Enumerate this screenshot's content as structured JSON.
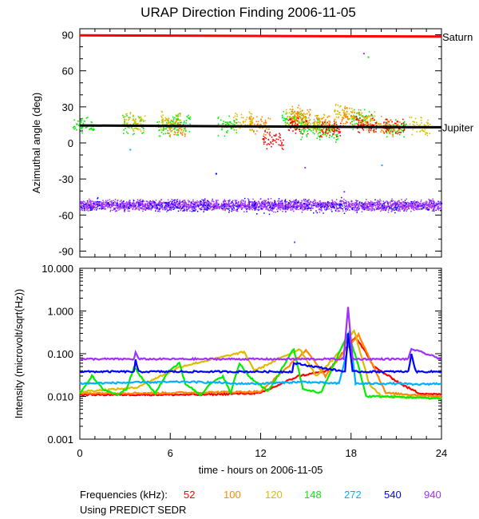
{
  "title": "URAP Direction Finding  2006-11-05",
  "footer": {
    "frequencies_label": "Frequencies (kHz):",
    "source_note": "Using PREDICT SEDR"
  },
  "chart_data": [
    {
      "type": "scatter",
      "panel": "top",
      "ylabel": "Azimuthal angle (deg)",
      "xlim": [
        0,
        24
      ],
      "ylim": [
        -95,
        95
      ],
      "y_ticks": [
        "90",
        "60",
        "30",
        "0",
        "-30",
        "-60",
        "-90"
      ],
      "reference_lines": [
        {
          "name": "Saturn",
          "y_start": 89.5,
          "y_end": 88.5,
          "color": "#ff0000"
        },
        {
          "name": "Jupiter",
          "y_start": 14.5,
          "y_end": 13.0,
          "color": "#000000"
        }
      ],
      "series": [
        {
          "frequency": "940",
          "color": "#a030ff",
          "band": [
            -58,
            -45
          ],
          "x_range": [
            0,
            24
          ],
          "density": "dense"
        },
        {
          "frequency": "540",
          "color": "#0000ff",
          "band": [
            -60,
            -44
          ],
          "x_range": [
            0,
            24
          ],
          "density": "sparse"
        },
        {
          "frequency": "148",
          "color": "#00ee00",
          "clusters": [
            [
              0.2,
              15
            ],
            [
              3.5,
              16
            ],
            [
              5.8,
              14
            ],
            [
              6.6,
              17
            ],
            [
              9.8,
              15
            ],
            [
              14.1,
              20
            ],
            [
              15.3,
              12
            ],
            [
              16.4,
              10
            ],
            [
              18.7,
              20
            ],
            [
              21.0,
              12
            ]
          ]
        },
        {
          "frequency": "120",
          "color": "#ddbb00",
          "clusters": [
            [
              3.6,
              18
            ],
            [
              6.0,
              19
            ],
            [
              10.8,
              18
            ],
            [
              14.3,
              22
            ],
            [
              15.6,
              18
            ],
            [
              17.5,
              25
            ],
            [
              19.2,
              18
            ],
            [
              22.5,
              15
            ]
          ]
        },
        {
          "frequency": "100",
          "color": "#ff8800",
          "clusters": [
            [
              6.4,
              12
            ],
            [
              11.9,
              16
            ],
            [
              14.6,
              24
            ],
            [
              16.2,
              15
            ],
            [
              18.0,
              22
            ],
            [
              20.5,
              14
            ]
          ]
        },
        {
          "frequency": "52",
          "color": "#ff0000",
          "clusters": [
            [
              12.8,
              3
            ],
            [
              14.5,
              15
            ],
            [
              16.6,
              12
            ],
            [
              19.0,
              16
            ],
            [
              20.8,
              13
            ]
          ]
        }
      ],
      "outliers": [
        {
          "x": 18.8,
          "y": 75,
          "color": "#a030ff"
        },
        {
          "x": 19.1,
          "y": 72,
          "color": "#00ee00"
        },
        {
          "x": 14.2,
          "y": -82,
          "color": "#a030ff"
        },
        {
          "x": 9.0,
          "y": -25,
          "color": "#0000ff"
        },
        {
          "x": 3.3,
          "y": -5,
          "color": "#00b0ff"
        },
        {
          "x": 17.5,
          "y": -40,
          "color": "#a030ff"
        },
        {
          "x": 14.9,
          "y": -20,
          "color": "#a030ff"
        },
        {
          "x": 20.0,
          "y": -18,
          "color": "#00b0ff"
        }
      ]
    },
    {
      "type": "line",
      "panel": "bottom",
      "ylabel": "Intensity (microvolt/sqrt(Hz))",
      "xlabel": "time - hours on 2006-11-05",
      "xlim": [
        0,
        24
      ],
      "ylim": [
        0.001,
        10
      ],
      "yscale": "log",
      "x_ticks": [
        "0",
        "6",
        "12",
        "18",
        "24"
      ],
      "y_ticks": [
        "10.000",
        "1.000",
        "0.100",
        "0.010",
        "0.001"
      ],
      "series": [
        {
          "name": "940",
          "color": "#a030ff",
          "x": [
            0,
            3.6,
            3.7,
            3.9,
            17.5,
            17.8,
            18.1,
            21.8,
            22.0,
            24
          ],
          "y": [
            0.075,
            0.075,
            0.11,
            0.075,
            0.075,
            1.2,
            0.075,
            0.075,
            0.13,
            0.075
          ]
        },
        {
          "name": "540",
          "color": "#0000ff",
          "x": [
            0,
            3.6,
            3.7,
            3.9,
            11.5,
            14.1,
            14.2,
            17.6,
            17.8,
            18.1,
            21.8,
            22.0,
            22.3,
            24
          ],
          "y": [
            0.038,
            0.038,
            0.07,
            0.038,
            0.038,
            0.038,
            0.06,
            0.038,
            0.3,
            0.038,
            0.038,
            0.1,
            0.038,
            0.038
          ]
        },
        {
          "name": "272",
          "color": "#00b0ff",
          "x": [
            0,
            3.0,
            7.0,
            9.5,
            10.0,
            12.0,
            14.8,
            17.2,
            17.7,
            17.9,
            18.3,
            21.5,
            22.0,
            24
          ],
          "y": [
            0.02,
            0.021,
            0.022,
            0.021,
            0.02,
            0.02,
            0.022,
            0.02,
            0.1,
            0.35,
            0.02,
            0.02,
            0.019,
            0.02
          ]
        },
        {
          "name": "148",
          "color": "#00ee00",
          "x": [
            0,
            0.8,
            1.5,
            2.5,
            3.1,
            3.6,
            4.0,
            5.0,
            5.9,
            6.6,
            7.0,
            8.0,
            8.7,
            9.5,
            10.0,
            10.6,
            11.2,
            12.5,
            14.2,
            14.8,
            16.0,
            16.9,
            17.8,
            18.1,
            18.5,
            19.0,
            20.0,
            24
          ],
          "y": [
            0.012,
            0.03,
            0.015,
            0.011,
            0.015,
            0.05,
            0.03,
            0.012,
            0.04,
            0.06,
            0.02,
            0.011,
            0.02,
            0.03,
            0.012,
            0.06,
            0.03,
            0.013,
            0.13,
            0.015,
            0.012,
            0.06,
            0.3,
            0.15,
            0.05,
            0.01,
            0.01,
            0.009
          ]
        },
        {
          "name": "120",
          "color": "#ddbb00",
          "x": [
            0,
            3.7,
            6.7,
            10.9,
            11.6,
            14.6,
            15.7,
            16.9,
            18.2,
            19.2,
            20.0,
            24
          ],
          "y": [
            0.013,
            0.016,
            0.05,
            0.11,
            0.04,
            0.13,
            0.03,
            0.08,
            0.35,
            0.02,
            0.01,
            0.009
          ]
        },
        {
          "name": "100",
          "color": "#ff8800",
          "x": [
            0,
            5.0,
            12.0,
            15.0,
            16.3,
            17.2,
            18.5,
            19.5,
            20.3,
            24
          ],
          "y": [
            0.012,
            0.012,
            0.013,
            0.12,
            0.03,
            0.08,
            0.28,
            0.05,
            0.012,
            0.01
          ]
        },
        {
          "name": "52",
          "color": "#ff0000",
          "x": [
            0,
            8.0,
            12.0,
            14.5,
            16.5,
            18.3,
            18.9,
            19.5,
            20.5,
            21.5,
            22.5,
            24
          ],
          "y": [
            0.011,
            0.011,
            0.012,
            0.03,
            0.04,
            0.25,
            0.12,
            0.05,
            0.03,
            0.018,
            0.012,
            0.011
          ]
        }
      ]
    }
  ]
}
